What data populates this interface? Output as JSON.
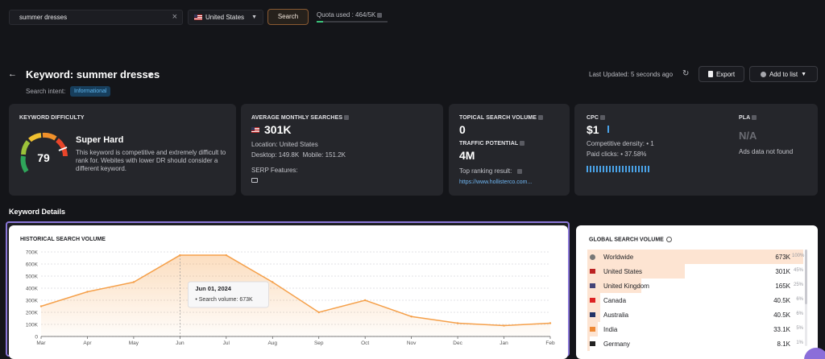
{
  "search": {
    "query": "summer dresses",
    "country": "United States",
    "button": "Search"
  },
  "quota": {
    "label": "Quota used : 464/5K",
    "used_fraction": 0.093
  },
  "header": {
    "title": "Keyword: summer dresses",
    "intent_label": "Search intent:",
    "intent": "Informational",
    "last_updated": "Last Updated: 5 seconds ago",
    "export": "Export",
    "add_to_list": "Add to list"
  },
  "difficulty": {
    "label": "KEYWORD DIFFICULTY",
    "value": "79",
    "level": "Super Hard",
    "description": "This keyword is competitive and extremely difficult to rank for. Webites with lower DR should consider a different keyword."
  },
  "monthly": {
    "label": "AVERAGE MONTHLY SEARCHES",
    "value": "301K",
    "location": "Location: United States",
    "desktop": "Desktop: 149.8K",
    "mobile": "Mobile: 151.2K",
    "serp": "SERP Features:"
  },
  "topical": {
    "label": "TOPICAL SEARCH VOLUME",
    "value": "0",
    "traffic_label": "TRAFFIC POTENTIAL",
    "traffic_value": "4M",
    "top_label": "Top ranking result:",
    "top_url": "https://www.hollisterco.com..."
  },
  "cpc": {
    "label": "CPC",
    "value": "$1",
    "density": "Competitive density: • 1",
    "paid": "Paid clicks: • 37.58%"
  },
  "pla": {
    "label": "PLA",
    "value": "N/A",
    "message": "Ads data not found"
  },
  "section_title": "Keyword Details",
  "chart_data": {
    "type": "area",
    "title": "HISTORICAL SEARCH VOLUME",
    "categories": [
      "Mar",
      "Apr",
      "May",
      "Jun",
      "Jul",
      "Aug",
      "Sep",
      "Oct",
      "Nov",
      "Dec",
      "Jan",
      "Feb"
    ],
    "series": [
      {
        "values": [
          250000,
          370000,
          450000,
          673000,
          673000,
          450000,
          200000,
          300000,
          165000,
          110000,
          90000,
          110000
        ]
      }
    ],
    "ylim": [
      0,
      700000
    ],
    "yticks": [
      "0",
      "100K",
      "200K",
      "300K",
      "400K",
      "500K",
      "600K",
      "700K"
    ],
    "tooltip": {
      "title": "Jun 01, 2024",
      "text": "Search volume: 673K"
    },
    "grid": true,
    "color": "#f5a04a"
  },
  "global": {
    "title": "GLOBAL SEARCH VOLUME",
    "rows": [
      {
        "name": "Worldwide",
        "volume": "673K",
        "pct": "100%",
        "share": 1.0
      },
      {
        "name": "United States",
        "volume": "301K",
        "pct": "45%",
        "share": 0.45
      },
      {
        "name": "United Kingdom",
        "volume": "165K",
        "pct": "25%",
        "share": 0.25
      },
      {
        "name": "Canada",
        "volume": "40.5K",
        "pct": "6%",
        "share": 0.06
      },
      {
        "name": "Australia",
        "volume": "40.5K",
        "pct": "6%",
        "share": 0.06
      },
      {
        "name": "India",
        "volume": "33.1K",
        "pct": "5%",
        "share": 0.05
      },
      {
        "name": "Germany",
        "volume": "8.1K",
        "pct": "1%",
        "share": 0.01
      }
    ]
  }
}
